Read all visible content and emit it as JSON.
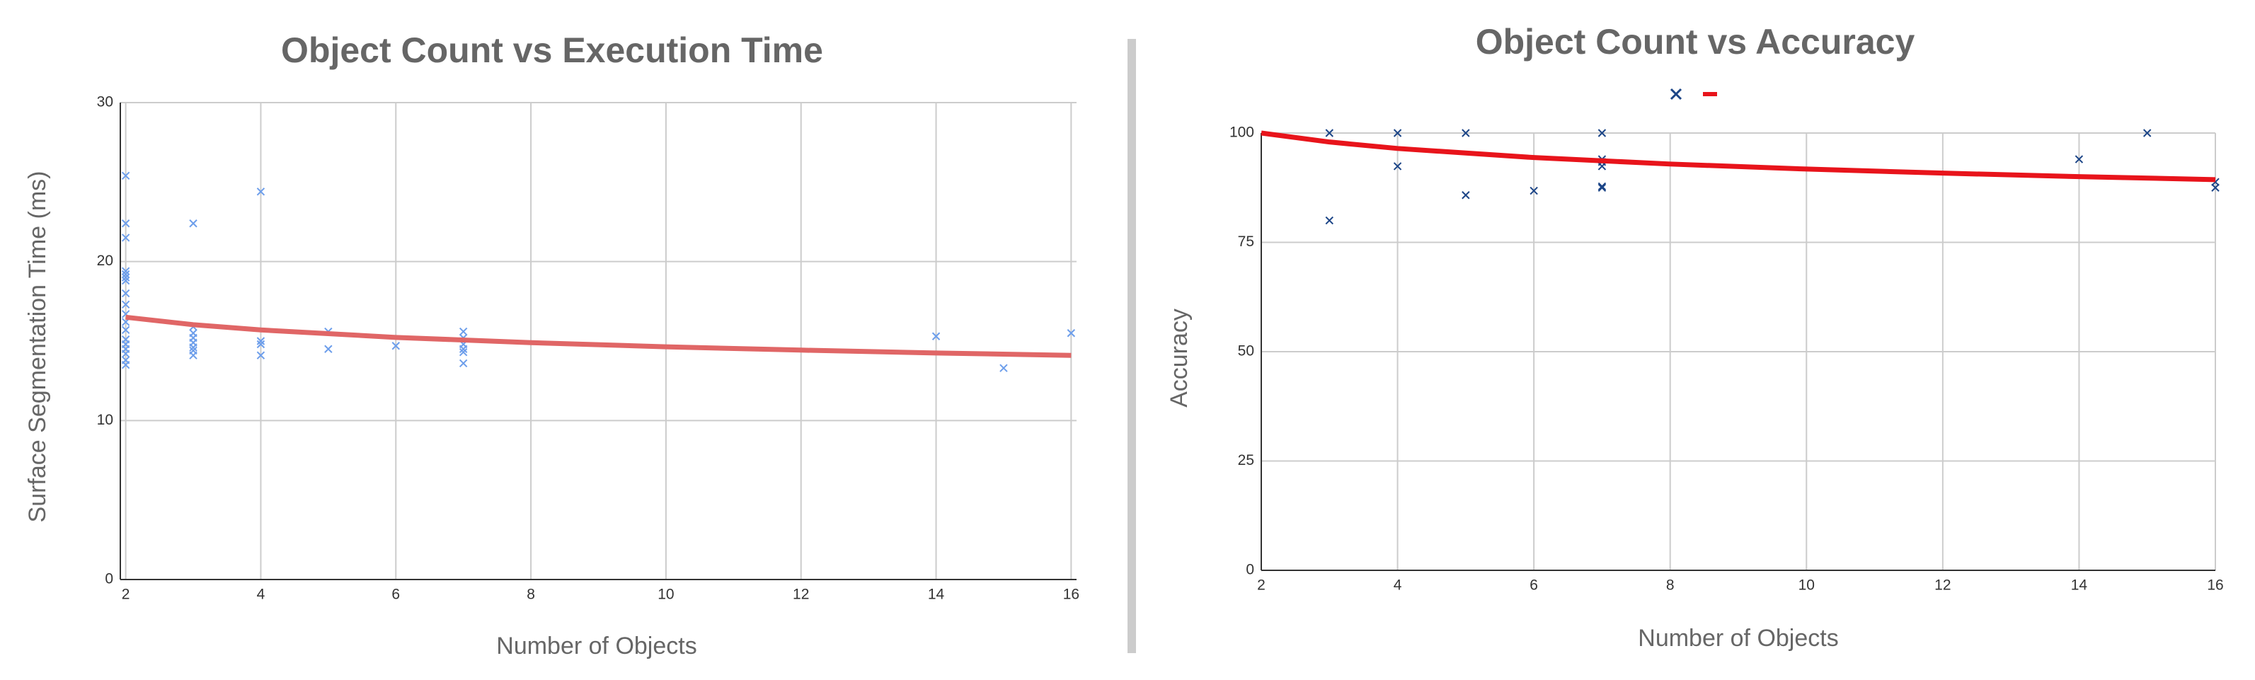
{
  "chart_data": [
    {
      "type": "scatter",
      "title": "Object Count vs Execution Time",
      "x_label": "Number of Objects",
      "y_label": "Surface Segmentation Time (ms)",
      "xlim": [
        1.92,
        16.08
      ],
      "ylim": [
        0,
        30
      ],
      "xticks": [
        2,
        4,
        6,
        8,
        10,
        12,
        14,
        16
      ],
      "yticks": [
        0,
        10,
        20,
        30
      ],
      "grid": true,
      "series": [
        {
          "type": "scatter",
          "color": "#6d9eeb",
          "x": [
            2,
            2,
            2,
            2,
            2,
            2,
            2,
            2,
            2,
            2,
            2,
            2,
            2,
            2,
            2,
            2,
            2,
            2,
            3,
            3,
            3,
            3,
            3,
            3,
            3,
            3,
            4,
            4,
            4,
            4,
            5,
            5,
            6,
            7,
            7,
            7,
            7,
            7,
            7,
            14,
            15,
            16
          ],
          "values": [
            25.4,
            22.4,
            21.5,
            19.4,
            19.2,
            19,
            18.8,
            18,
            17.3,
            16.7,
            16.2,
            15.7,
            15.1,
            14.8,
            14.5,
            14.2,
            13.8,
            13.5,
            22.4,
            15.9,
            15.5,
            15.2,
            14.9,
            14.6,
            14.4,
            14.1,
            24.4,
            15,
            14.8,
            14.1,
            15.6,
            14.5,
            14.7,
            15.6,
            15.2,
            14.8,
            14.5,
            14.3,
            13.6,
            15.3,
            13.3,
            15.5
          ]
        },
        {
          "type": "line",
          "color": "#e06666",
          "x": [
            2,
            3,
            4,
            6,
            8,
            10,
            12,
            14,
            16
          ],
          "values": [
            16.5,
            16.03,
            15.7,
            15.23,
            14.9,
            14.64,
            14.43,
            14.25,
            14.1
          ]
        }
      ]
    },
    {
      "type": "scatter",
      "title": "Object Count vs Accuracy",
      "x_label": "Number of Objects",
      "y_label": "Accuracy",
      "xlim": [
        2,
        16
      ],
      "ylim": [
        0,
        100
      ],
      "xticks": [
        2,
        4,
        6,
        8,
        10,
        12,
        14,
        16
      ],
      "yticks": [
        0,
        25,
        50,
        75,
        100
      ],
      "grid": true,
      "legend": "top",
      "series": [
        {
          "type": "scatter",
          "color": "#1c4587",
          "x": [
            3,
            3,
            4,
            4,
            5,
            5,
            6,
            7,
            7,
            7,
            7,
            7,
            7,
            14,
            15,
            16,
            16
          ],
          "values": [
            100,
            80,
            100,
            92.4,
            100,
            85.8,
            86.8,
            100,
            94,
            93.4,
            92.4,
            87.8,
            87.5,
            94,
            100,
            88.8,
            87.5
          ]
        },
        {
          "type": "line",
          "color": "#e8141b",
          "x": [
            2,
            3,
            4,
            6,
            8,
            10,
            12,
            14,
            16
          ],
          "values": [
            100,
            97.95,
            96.47,
            94.39,
            92.91,
            91.76,
            90.83,
            90.03,
            89.35
          ]
        }
      ]
    }
  ]
}
